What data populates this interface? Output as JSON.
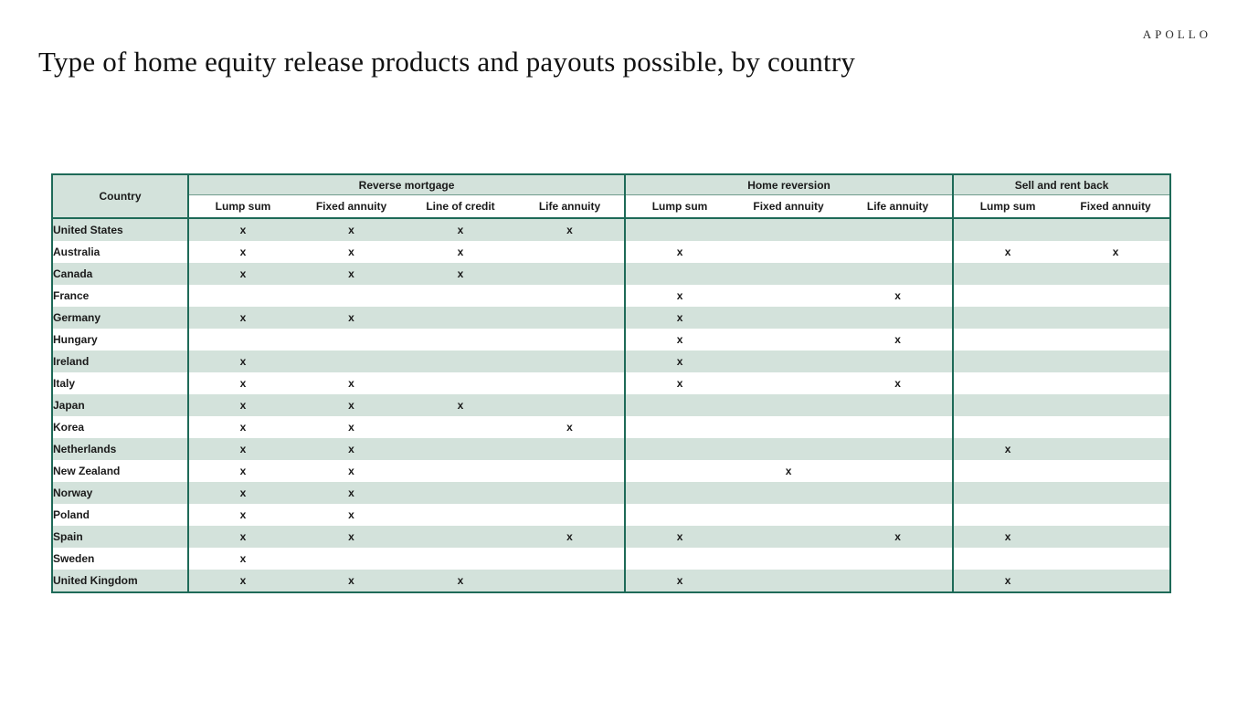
{
  "logo": "APOLLO",
  "title": "Type of home equity release products and payouts possible, by country",
  "colors": {
    "band_green": "#d3e2db",
    "border_green": "#1e6a58",
    "text": "#1a1a1a"
  },
  "table": {
    "country_header": "Country",
    "mark": "x",
    "groups": [
      {
        "label": "Reverse mortgage",
        "subs": [
          "Lump sum",
          "Fixed annuity",
          "Line of credit",
          "Life annuity"
        ]
      },
      {
        "label": "Home reversion",
        "subs": [
          "Lump sum",
          "Fixed annuity",
          "Life annuity"
        ]
      },
      {
        "label": "Sell and rent back",
        "subs": [
          "Lump sum",
          "Fixed annuity"
        ]
      }
    ],
    "rows": [
      {
        "country": "United States",
        "marks": [
          1,
          1,
          1,
          1,
          0,
          0,
          0,
          0,
          0
        ]
      },
      {
        "country": "Australia",
        "marks": [
          1,
          1,
          1,
          0,
          1,
          0,
          0,
          1,
          1
        ]
      },
      {
        "country": "Canada",
        "marks": [
          1,
          1,
          1,
          0,
          0,
          0,
          0,
          0,
          0
        ]
      },
      {
        "country": "France",
        "marks": [
          0,
          0,
          0,
          0,
          1,
          0,
          1,
          0,
          0
        ]
      },
      {
        "country": "Germany",
        "marks": [
          1,
          1,
          0,
          0,
          1,
          0,
          0,
          0,
          0
        ]
      },
      {
        "country": "Hungary",
        "marks": [
          0,
          0,
          0,
          0,
          1,
          0,
          1,
          0,
          0
        ]
      },
      {
        "country": "Ireland",
        "marks": [
          1,
          0,
          0,
          0,
          1,
          0,
          0,
          0,
          0
        ]
      },
      {
        "country": "Italy",
        "marks": [
          1,
          1,
          0,
          0,
          1,
          0,
          1,
          0,
          0
        ]
      },
      {
        "country": "Japan",
        "marks": [
          1,
          1,
          1,
          0,
          0,
          0,
          0,
          0,
          0
        ]
      },
      {
        "country": "Korea",
        "marks": [
          1,
          1,
          0,
          1,
          0,
          0,
          0,
          0,
          0
        ]
      },
      {
        "country": "Netherlands",
        "marks": [
          1,
          1,
          0,
          0,
          0,
          0,
          0,
          1,
          0
        ]
      },
      {
        "country": "New Zealand",
        "marks": [
          1,
          1,
          0,
          0,
          0,
          1,
          0,
          0,
          0
        ]
      },
      {
        "country": "Norway",
        "marks": [
          1,
          1,
          0,
          0,
          0,
          0,
          0,
          0,
          0
        ]
      },
      {
        "country": "Poland",
        "marks": [
          1,
          1,
          0,
          0,
          0,
          0,
          0,
          0,
          0
        ]
      },
      {
        "country": "Spain",
        "marks": [
          1,
          1,
          0,
          1,
          1,
          0,
          1,
          1,
          0
        ]
      },
      {
        "country": "Sweden",
        "marks": [
          1,
          0,
          0,
          0,
          0,
          0,
          0,
          0,
          0
        ]
      },
      {
        "country": "United Kingdom",
        "marks": [
          1,
          1,
          1,
          0,
          1,
          0,
          0,
          1,
          0
        ]
      }
    ]
  }
}
